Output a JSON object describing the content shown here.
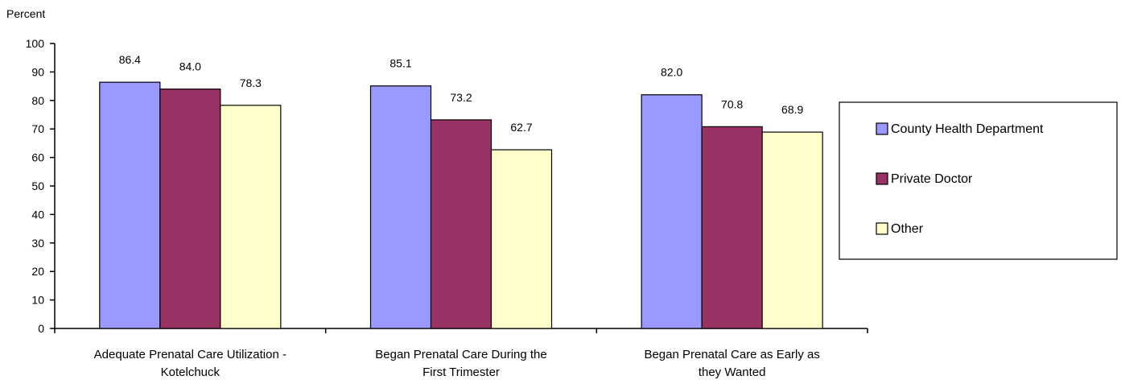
{
  "chart_data": {
    "type": "bar",
    "title": "",
    "ylabel": "Percent",
    "xlabel": "",
    "ylim": [
      0,
      100
    ],
    "yticks": [
      0,
      10,
      20,
      30,
      40,
      50,
      60,
      70,
      80,
      90,
      100
    ],
    "grid": false,
    "legend_position": "right",
    "categories": [
      [
        "Adequate Prenatal Care Utilization -",
        "Kotelchuck"
      ],
      [
        "Began Prenatal Care During the",
        "First Trimester"
      ],
      [
        "Began Prenatal Care as Early as",
        "they Wanted"
      ]
    ],
    "series": [
      {
        "name": "County Health Department",
        "color": "#9999ff",
        "values": [
          86.4,
          85.1,
          82.0
        ]
      },
      {
        "name": "Private Doctor",
        "color": "#993366",
        "values": [
          84.0,
          73.2,
          70.8
        ]
      },
      {
        "name": "Other",
        "color": "#ffffcc",
        "values": [
          78.3,
          62.7,
          68.9
        ]
      }
    ]
  }
}
